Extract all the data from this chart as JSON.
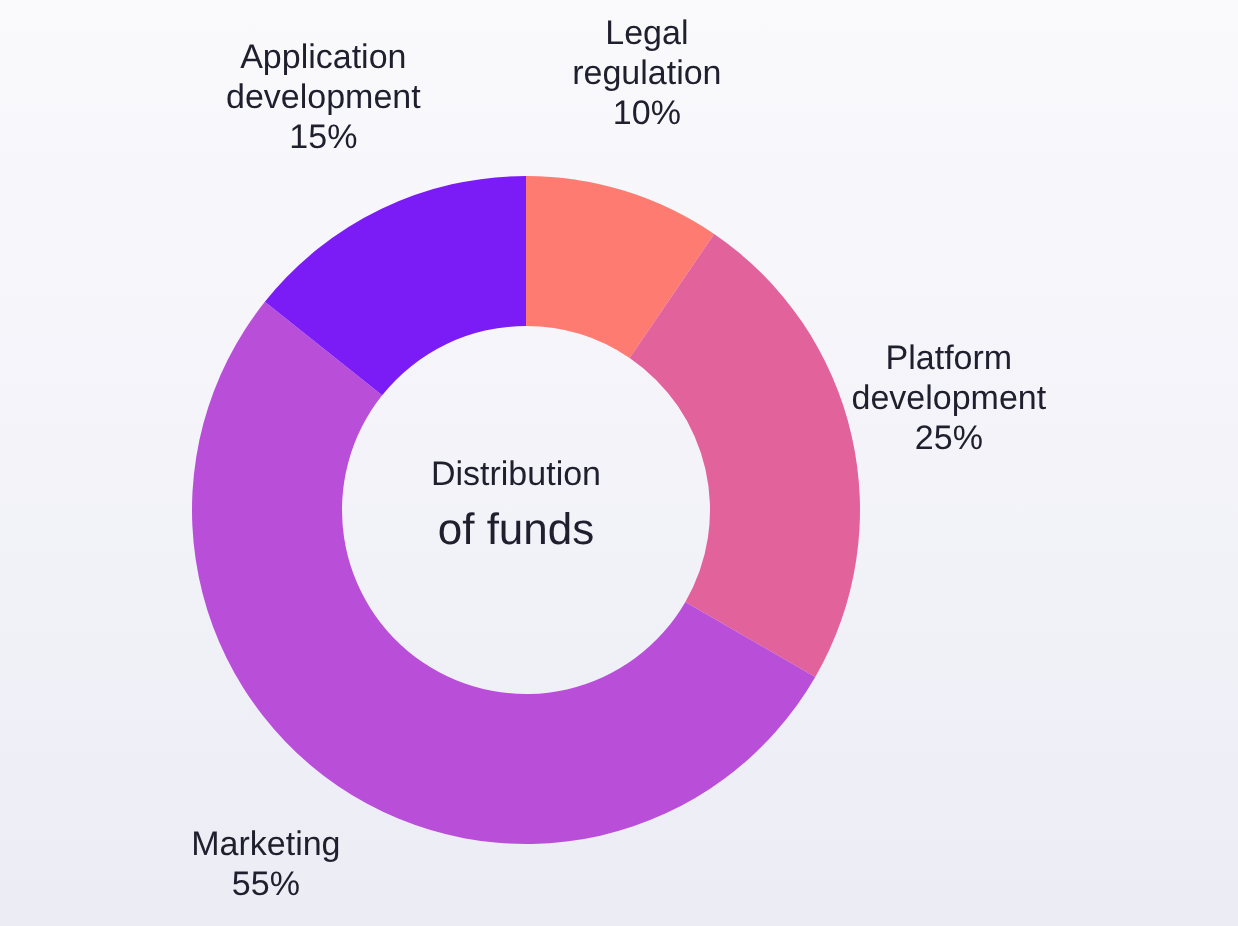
{
  "chart_data": {
    "type": "donut",
    "title": "Distribution",
    "subtitle": "of funds",
    "categories": [
      "Legal regulation",
      "Platform development",
      "Marketing",
      "Application development"
    ],
    "values": [
      10,
      25,
      55,
      15
    ],
    "value_labels": [
      "10%",
      "25%",
      "55%",
      "15%"
    ],
    "colors": [
      "#fe7b72",
      "#e2629c",
      "#b94fd9",
      "#7b1cf6"
    ],
    "legend": false
  }
}
